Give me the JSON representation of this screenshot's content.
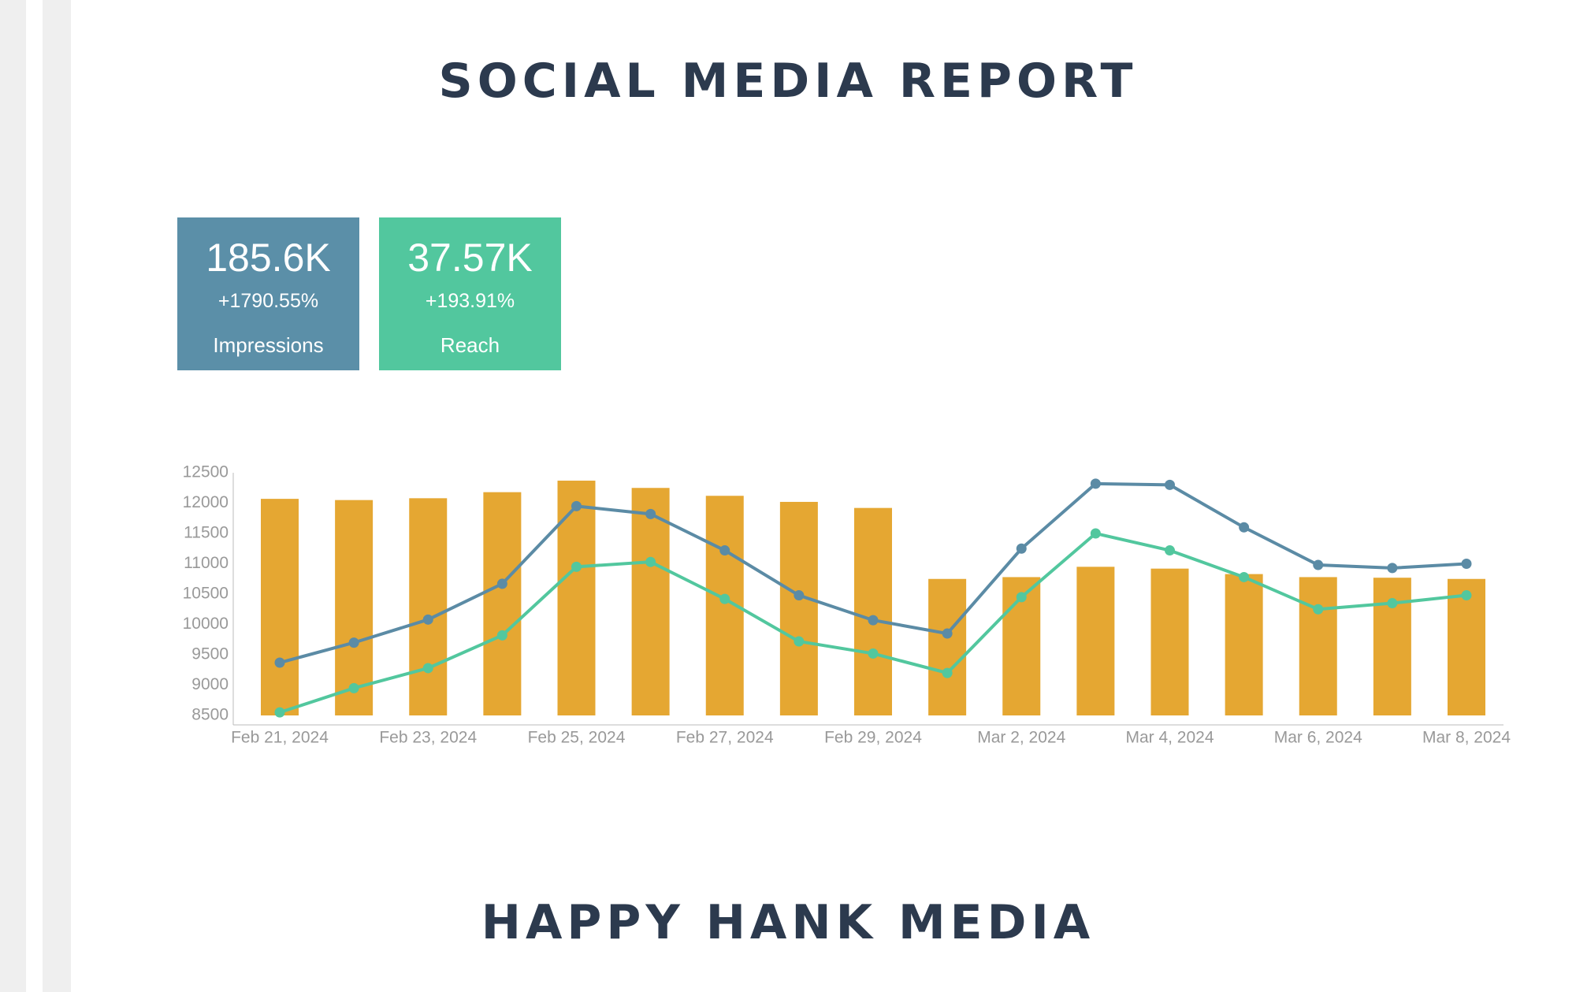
{
  "header": {
    "title": "SOCIAL MEDIA REPORT"
  },
  "cards": [
    {
      "value": "185.6K",
      "change": "+1790.55%",
      "label": "Impressions",
      "color": "#5b8fa8"
    },
    {
      "value": "37.57K",
      "change": "+193.91%",
      "label": "Reach",
      "color": "#52c79e"
    }
  ],
  "chart_data": {
    "type": "bar",
    "categories": [
      "Feb 21, 2024",
      null,
      "Feb 23, 2024",
      null,
      "Feb 25, 2024",
      null,
      "Feb 27, 2024",
      null,
      "Feb 29, 2024",
      null,
      "Mar 2, 2024",
      null,
      "Mar 4, 2024",
      null,
      "Mar 6, 2024",
      null,
      "Mar 8, 2024"
    ],
    "series": [
      {
        "type": "bar",
        "color": "#e5a732",
        "values": [
          12070,
          12050,
          12080,
          12180,
          12370,
          12250,
          12120,
          12020,
          11920,
          10750,
          10780,
          10950,
          10920,
          10830,
          10780,
          10770,
          10750
        ]
      },
      {
        "type": "line",
        "color": "#5b8ba5",
        "values": [
          9370,
          9700,
          10080,
          10670,
          11950,
          11820,
          11220,
          10480,
          10070,
          9850,
          11250,
          12320,
          12300,
          11600,
          10980,
          10930,
          11000
        ]
      },
      {
        "type": "line",
        "color": "#52c79e",
        "values": [
          8550,
          8950,
          9280,
          9820,
          10950,
          11030,
          10420,
          9720,
          9520,
          9200,
          10450,
          11500,
          11220,
          10780,
          10250,
          10350,
          10480
        ]
      }
    ],
    "ylim": [
      8500,
      12500
    ],
    "yticks": [
      8500,
      9000,
      9500,
      10000,
      10500,
      11000,
      11500,
      12000,
      12500
    ],
    "grid": false
  },
  "footer": {
    "brand": "HAPPY HANK MEDIA"
  }
}
